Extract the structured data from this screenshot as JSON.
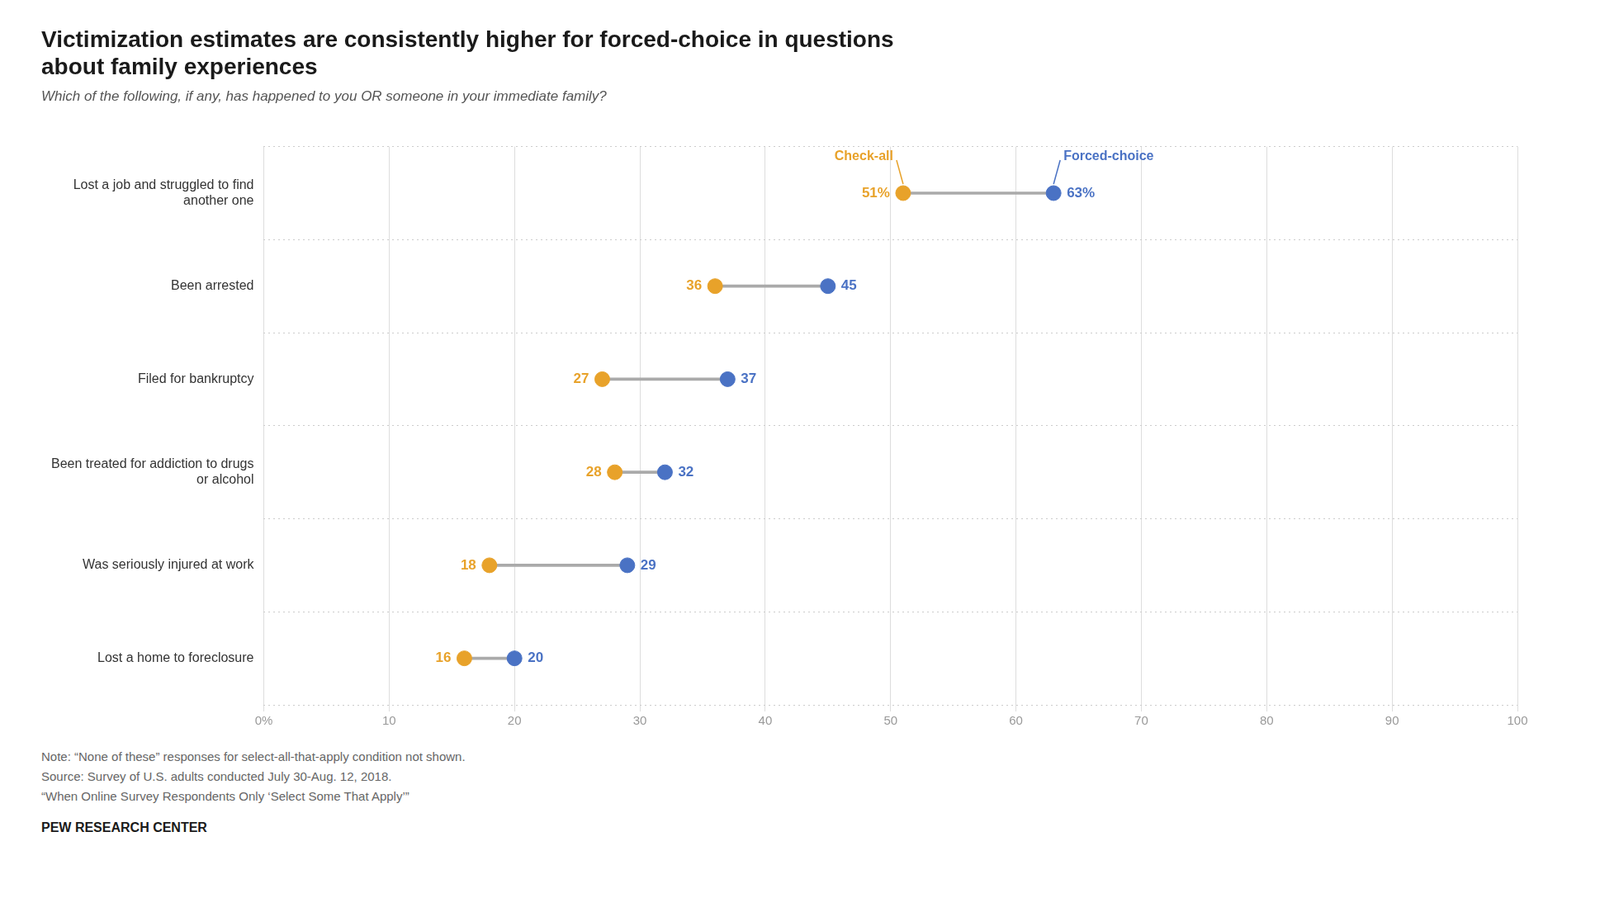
{
  "chart_data": {
    "type": "dumbbell",
    "title": [
      "Victimization estimates are consistently higher for forced-choice in questions",
      "about family experiences"
    ],
    "subtitle": "Which of the following, if any, has happened to you OR someone in your immediate family?",
    "orientation": "horizontal",
    "categories": [
      "Lost a job and struggled to find\nanother one",
      "Been arrested",
      "Filed for bankruptcy",
      "Been treated for addiction to drugs\nor alcohol",
      "Was seriously injured at work",
      "Lost a home to foreclosure"
    ],
    "series": [
      {
        "name": "Check-all",
        "color": "#E8A22A",
        "values": [
          51,
          36,
          27,
          28,
          18,
          16
        ],
        "value_labels": [
          "51%",
          "36",
          "27",
          "28",
          "18",
          "16"
        ]
      },
      {
        "name": "Forced-choice",
        "color": "#4A72C4",
        "values": [
          63,
          45,
          37,
          32,
          29,
          20
        ],
        "value_labels": [
          "63%",
          "45",
          "37",
          "32",
          "29",
          "20"
        ]
      }
    ],
    "xlim": [
      0,
      100
    ],
    "xticks": [
      {
        "value": 0,
        "label": "0%"
      },
      10,
      20,
      30,
      40,
      50,
      60,
      70,
      80,
      90,
      100
    ],
    "grid": true,
    "data_labels": true,
    "notes": [
      "Note: “None of these” responses for select-all-that-apply condition not shown.",
      "Source: Survey of U.S. adults conducted July 30-Aug. 12, 2018.",
      "“When Online Survey Respondents Only ‘Select Some That Apply’”"
    ],
    "source": "PEW RESEARCH CENTER"
  }
}
